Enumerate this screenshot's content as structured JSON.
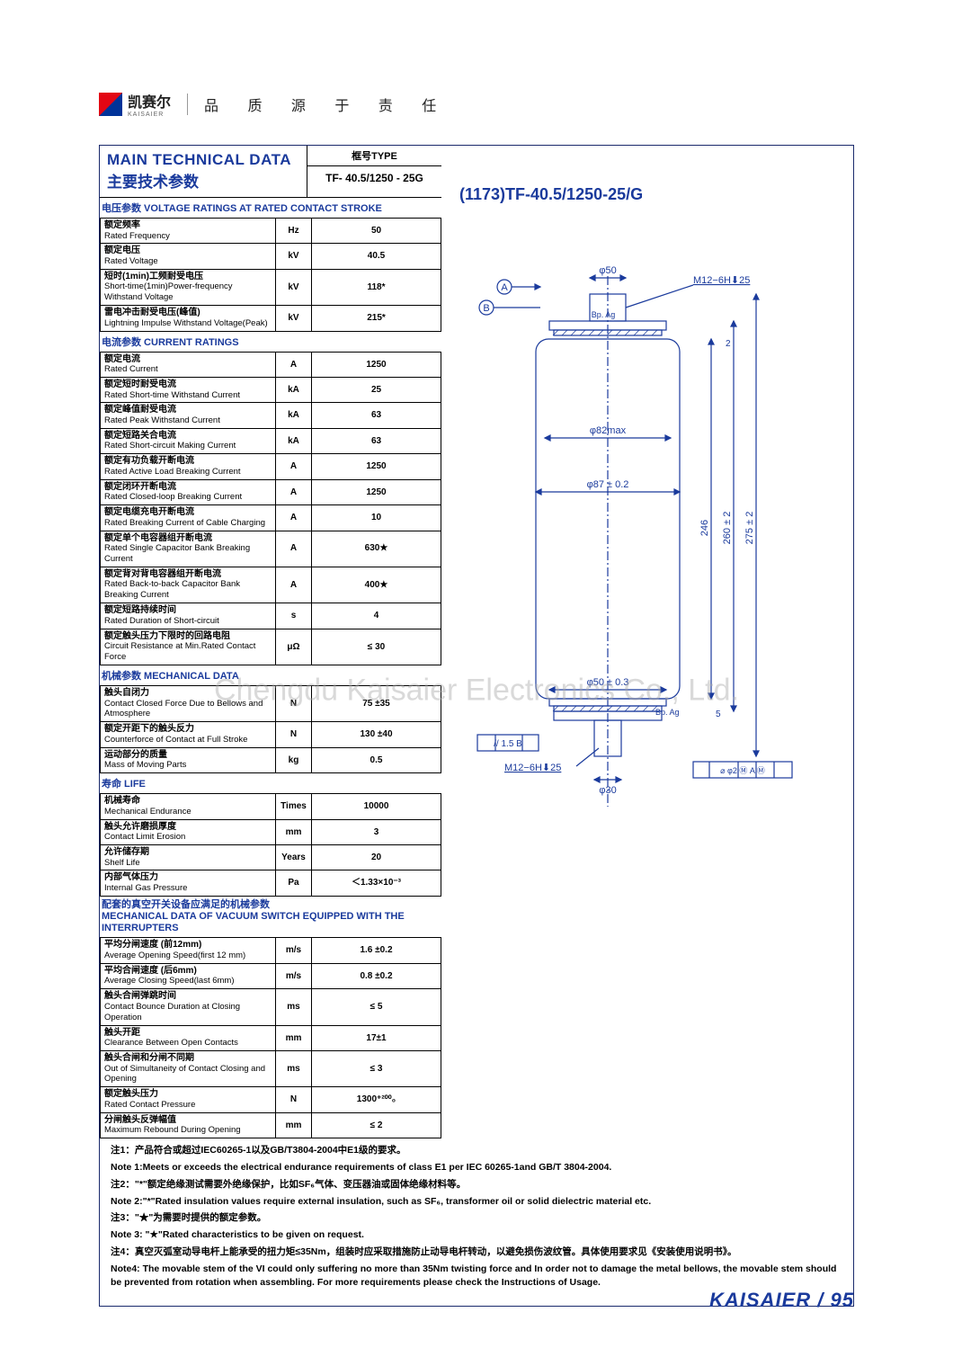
{
  "header": {
    "brand_cn": "凯赛尔",
    "brand_sub": "KAISAIER",
    "slogan": "品 质 源 于 责 任"
  },
  "title": {
    "en": "MAIN TECHNICAL DATA",
    "cn": "主要技术参数",
    "type_label": "框号TYPE",
    "type_value": "TF- 40.5/1250 - 25G"
  },
  "product_code": "(1173)TF-40.5/1250-25/G",
  "sections": {
    "voltage_header": "电压参数 VOLTAGE RATINGS AT RATED CONTACT STROKE",
    "current_header": "电流参数 CURRENT RATINGS",
    "mechanical_header": "机械参数 MECHANICAL DATA",
    "life_header": "寿命 LIFE",
    "switch_header_cn": "配套的真空开关设备应满足的机械参数",
    "switch_header_en": "MECHANICAL DATA OF VACUUM SWITCH EQUIPPED WITH THE INTERRUPTERS"
  },
  "voltage": [
    {
      "cn": "额定频率",
      "en": "Rated Frequency",
      "unit": "Hz",
      "val": "50"
    },
    {
      "cn": "额定电压",
      "en": "Rated Voltage",
      "unit": "kV",
      "val": "40.5"
    },
    {
      "cn": "短时(1min)工频耐受电压",
      "en": "Short-time(1min)Power-frequency Withstand Voltage",
      "unit": "kV",
      "val": "118*"
    },
    {
      "cn": "雷电冲击耐受电压(峰值)",
      "en": "Lightning Impulse Withstand Voltage(Peak)",
      "unit": "kV",
      "val": "215*"
    }
  ],
  "current": [
    {
      "cn": "额定电流",
      "en": "Rated Current",
      "unit": "A",
      "val": "1250"
    },
    {
      "cn": "额定短时耐受电流",
      "en": "Rated Short-time Withstand Current",
      "unit": "kA",
      "val": "25"
    },
    {
      "cn": "额定峰值耐受电流",
      "en": "Rated Peak Withstand Current",
      "unit": "kA",
      "val": "63"
    },
    {
      "cn": "额定短路关合电流",
      "en": "Rated Short-circuit Making Current",
      "unit": "kA",
      "val": "63"
    },
    {
      "cn": "额定有功负载开断电流",
      "en": "Rated Active Load Breaking Current",
      "unit": "A",
      "val": "1250"
    },
    {
      "cn": "额定闭环开断电流",
      "en": "Rated Closed-loop Breaking Current",
      "unit": "A",
      "val": "1250"
    },
    {
      "cn": "额定电缆充电开断电流",
      "en": "Rated Breaking Current of Cable Charging",
      "unit": "A",
      "val": "10"
    },
    {
      "cn": "额定单个电容器组开断电流",
      "en": "Rated Single Capacitor Bank Breaking Current",
      "unit": "A",
      "val": "630★"
    },
    {
      "cn": "额定背对背电容器组开断电流",
      "en": "Rated Back-to-back Capacitor Bank Breaking Current",
      "unit": "A",
      "val": "400★"
    },
    {
      "cn": "额定短路持续时间",
      "en": "Rated Duration of Short-circuit",
      "unit": "s",
      "val": "4"
    },
    {
      "cn": "额定触头压力下限时的回路电阻",
      "en": "Circuit Resistance at Min.Rated Contact Force",
      "unit": "μΩ",
      "val": "≤ 30"
    }
  ],
  "mechanical": [
    {
      "cn": "触头自闭力",
      "en": "Contact Closed Force Due to Bellows and Atmosphere",
      "unit": "N",
      "val": "75 ±35"
    },
    {
      "cn": "额定开距下的触头反力",
      "en": "Counterforce of Contact at Full Stroke",
      "unit": "N",
      "val": "130 ±40"
    },
    {
      "cn": "运动部分的质量",
      "en": "Mass of Moving Parts",
      "unit": "kg",
      "val": "0.5"
    }
  ],
  "life": [
    {
      "cn": "机械寿命",
      "en": "Mechanical Endurance",
      "unit": "Times",
      "val": "10000"
    },
    {
      "cn": "触头允许磨损厚度",
      "en": "Contact Limit Erosion",
      "unit": "mm",
      "val": "3"
    },
    {
      "cn": "允许储存期",
      "en": "Shelf Life",
      "unit": "Years",
      "val": "20"
    },
    {
      "cn": "内部气体压力",
      "en": "Internal Gas Pressure",
      "unit": "Pa",
      "val": "＜1.33×10⁻³"
    }
  ],
  "switch": [
    {
      "cn": "平均分闸速度   (前12mm)",
      "en": "Average Opening Speed(first 12 mm)",
      "unit": "m/s",
      "val": "1.6 ±0.2"
    },
    {
      "cn": "平均合闸速度   (后6mm)",
      "en": "Average Closing Speed(last 6mm)",
      "unit": "m/s",
      "val": "0.8 ±0.2"
    },
    {
      "cn": "触头合闸弹跳时间",
      "en": "Contact Bounce Duration at Closing Operation",
      "unit": "ms",
      "val": "≤ 5"
    },
    {
      "cn": "触头开距",
      "en": "Clearance Between Open Contacts",
      "unit": "mm",
      "val": "17±1"
    },
    {
      "cn": "触头合闸和分闸不同期",
      "en": "Out of Simultaneity of Contact Closing and Opening",
      "unit": "ms",
      "val": "≤ 3"
    },
    {
      "cn": "额定触头压力",
      "en": "Rated Contact Pressure",
      "unit": "N",
      "val": "1300⁺²⁰⁰₀"
    },
    {
      "cn": "分闸触头反弹幅值",
      "en": "Maximum Rebound During Opening",
      "unit": "mm",
      "val": "≤ 2"
    }
  ],
  "diagram": {
    "d_top": "φ50",
    "thread_top": "M12−6H⬇25",
    "bp_ag": "Bp. Ag",
    "d_body_max": "φ82max",
    "d_body": "φ87 ± 0.2",
    "h_246": "246",
    "h_260": "260 ± 2",
    "h_275": "275 ± 2",
    "d_bot": "φ50 ± 0.3",
    "tol_box": "// 1.5 B",
    "thread_bot": "M12−6H⬇25",
    "d_stem": "φ30",
    "gd_box": "⌀ φ2 Ⓜ A Ⓜ",
    "off_2": "2",
    "off_5": "5",
    "marker_a": "A",
    "marker_b": "B"
  },
  "notes": [
    "注1：产品符合或超过IEC60265-1以及GB/T3804-2004中E1级的要求。",
    "Note 1:Meets or exceeds the electrical endurance requirements of class E1 per IEC 60265-1and GB/T 3804-2004.",
    "注2：\"*\"额定绝缘测试需要外绝缘保护，比如SF₆气体、变压器油或固体绝缘材料等。",
    "Note 2:\"*\"Rated insulation values require external insulation, such as SF₆, transformer oil or solid dielectric material etc.",
    "注3：\"★\"为需要时提供的额定参数。",
    "Note 3: \"★\"Rated characteristics to be given on request.",
    "注4：真空灭弧室动导电杆上能承受的扭力矩≤35Nm，组装时应采取措施防止动导电杆转动，以避免损伤波纹管。具体使用要求见《安装使用说明书》。",
    "Note4: The movable stem of the VI could only suffering no more than 35Nm twisting force and In order not to damage the metal bellows, the movable stem should be prevented from rotation when assembling. For more requirements please check the Instructions of Usage."
  ],
  "watermark": "Chengdu Kaisaier Electronics Co., Ltd.",
  "footer": {
    "brand": "KAISAIER",
    "sep": "/",
    "page": "95"
  }
}
